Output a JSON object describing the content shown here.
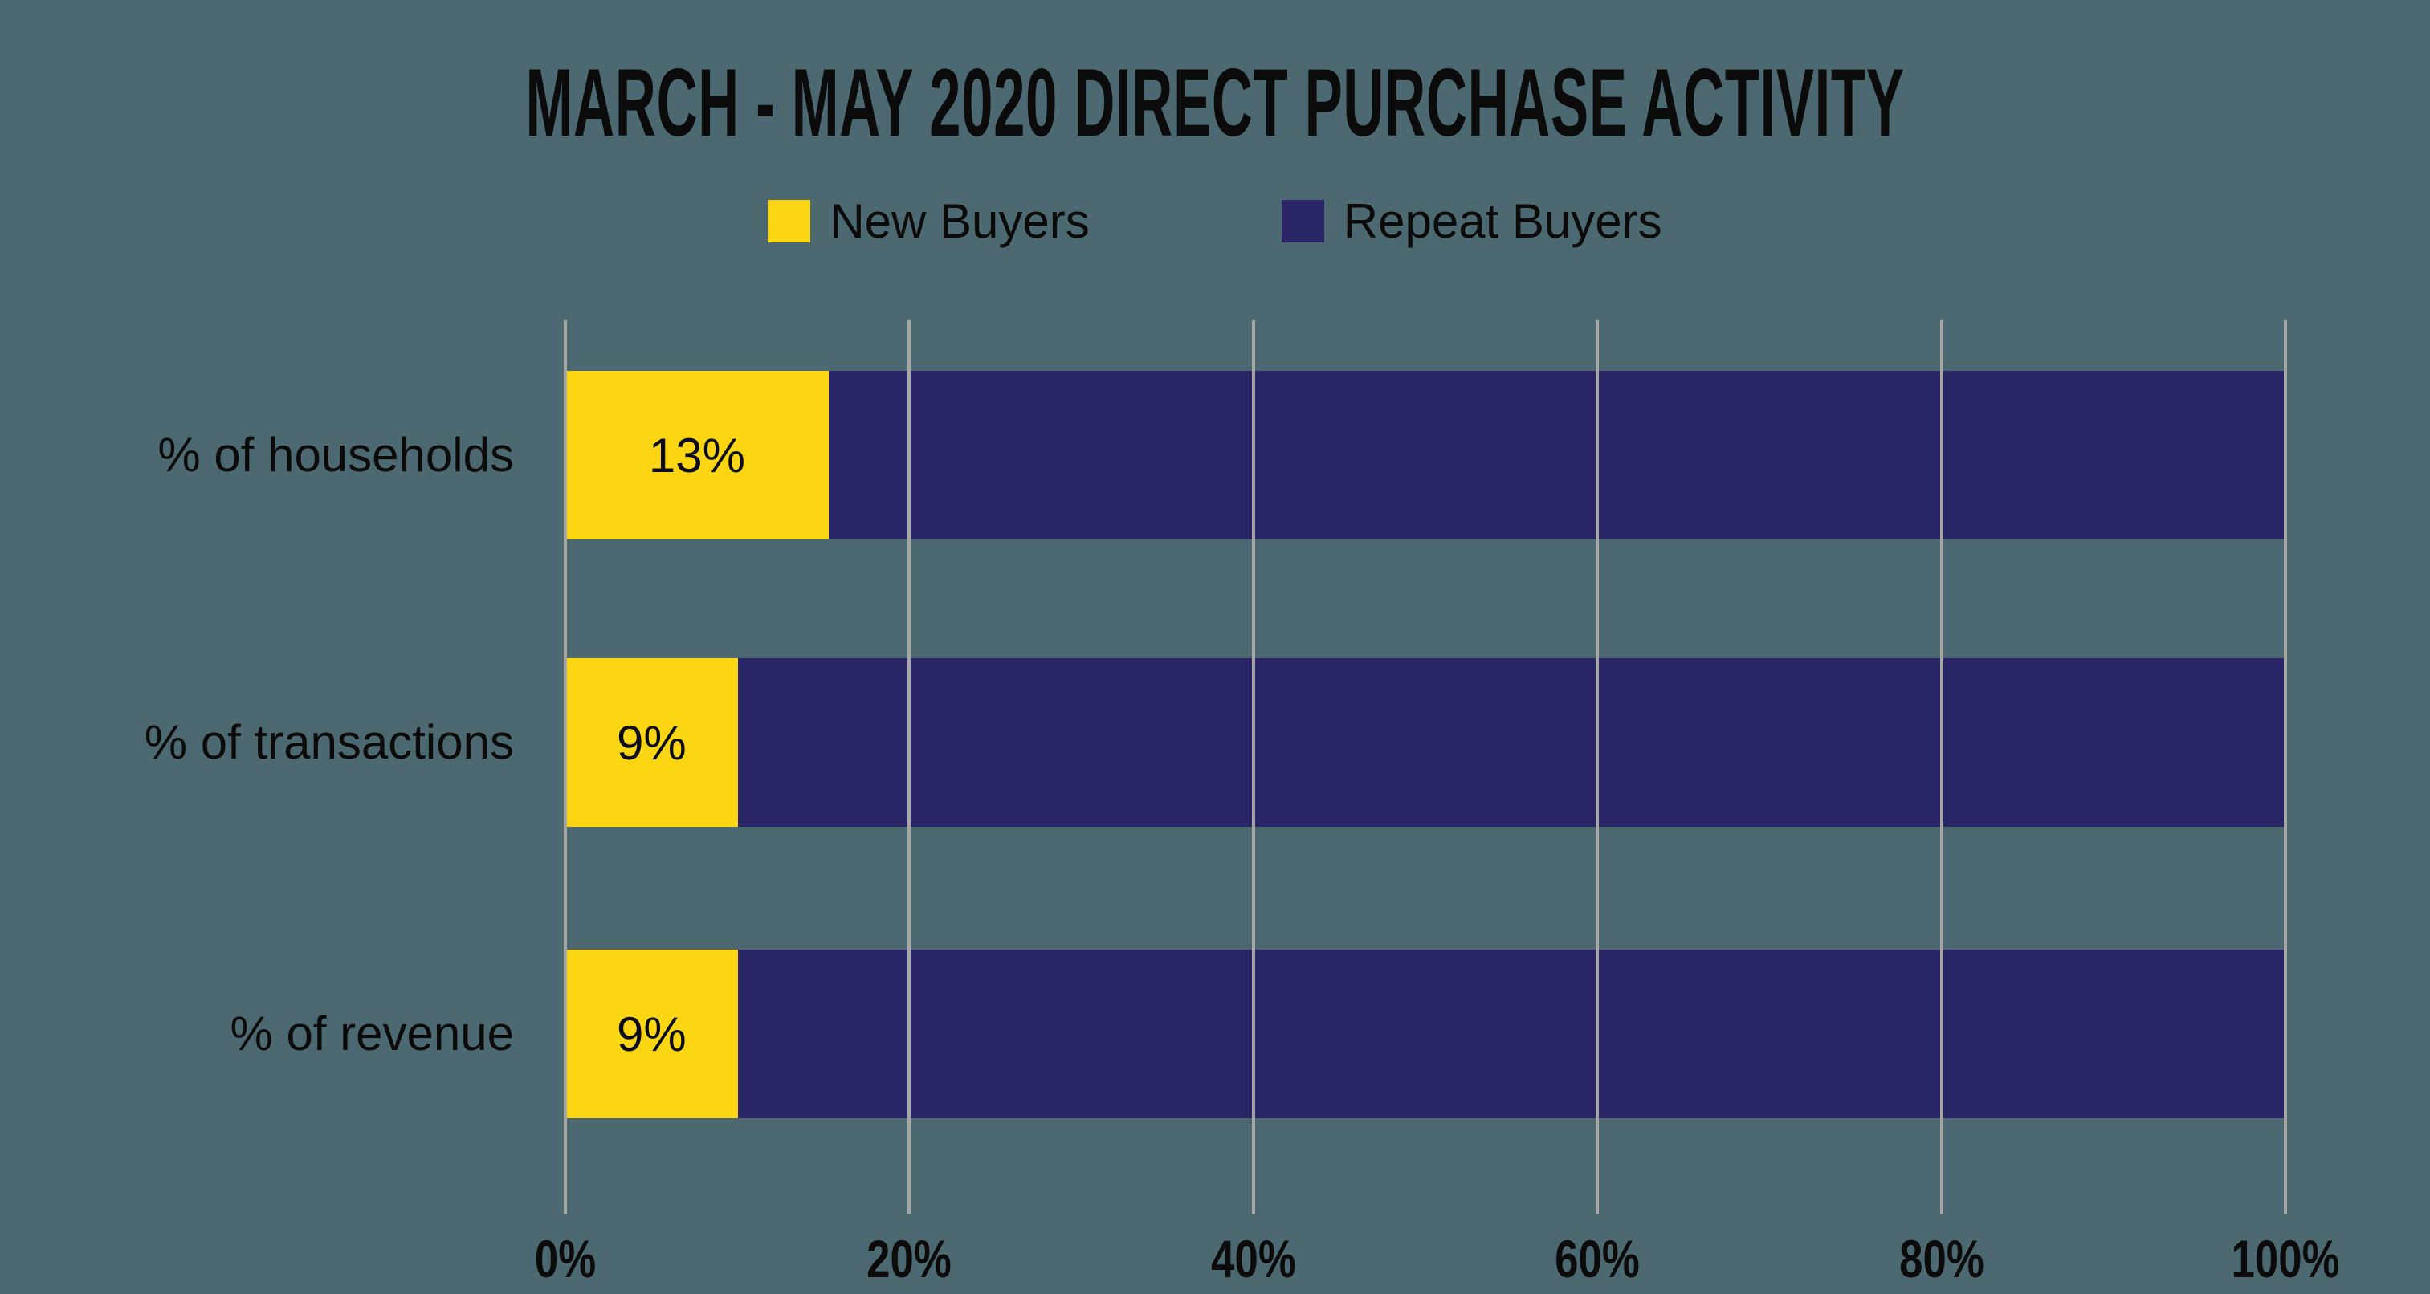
{
  "background_color": "#4C6971",
  "text_color": "#0B0B0B",
  "chart_data": {
    "type": "bar",
    "orientation": "horizontal",
    "stacked": true,
    "title": "MARCH - MAY 2020 DIRECT PURCHASE ACTIVITY",
    "categories": [
      "% of households",
      "% of transactions",
      "% of revenue"
    ],
    "series": [
      {
        "name": "New Buyers",
        "color": "#FCD613",
        "values": [
          13,
          9,
          9
        ],
        "data_labels": [
          "13%",
          "9%",
          "9%"
        ]
      },
      {
        "name": "Repeat Buyers",
        "color": "#2A2567",
        "values": [
          87,
          91,
          91
        ],
        "data_labels": [
          "",
          "",
          ""
        ]
      }
    ],
    "xlabel": "",
    "ylabel": "",
    "xlim": [
      0,
      100
    ],
    "x_ticks": [
      "0%",
      "20%",
      "40%",
      "60%",
      "80%",
      "100%"
    ],
    "grid": true,
    "grid_color": "#A6A6A6",
    "legend_position": "top-center",
    "render": {
      "new_buyer_segment_pct": [
        15.31,
        10.02,
        10.02
      ]
    }
  }
}
